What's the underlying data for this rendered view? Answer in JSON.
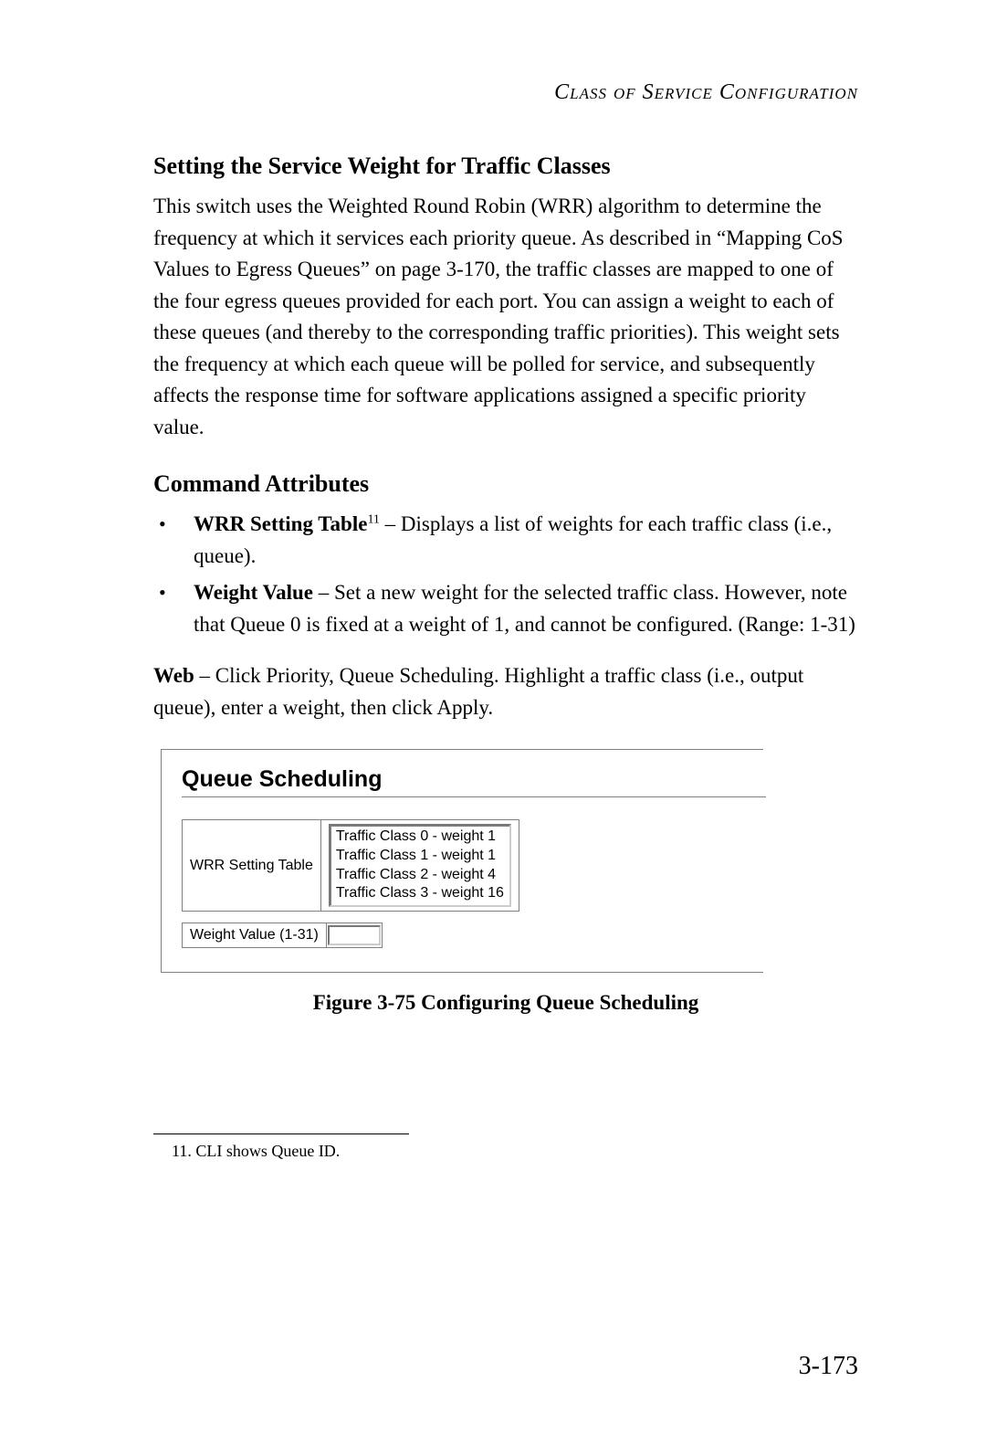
{
  "header": {
    "title": "Class of Service Configuration"
  },
  "section": {
    "title": "Setting the Service Weight for Traffic Classes",
    "para": "This switch uses the Weighted Round Robin (WRR) algorithm to determine the frequency at which it services each priority queue. As described in “Mapping CoS Values to Egress Queues” on page 3-170, the traffic classes are mapped to one of the four egress queues provided for each port. You can assign a weight to each of these queues (and thereby to the corresponding traffic priorities). This weight sets the frequency at which each queue will be polled for service, and subsequently affects the response time for software applications assigned a specific priority value."
  },
  "attributes": {
    "heading": "Command Attributes",
    "items": [
      {
        "label": "WRR Setting Table",
        "sup": "11",
        "desc": " – Displays a list of weights for each traffic class (i.e., queue)."
      },
      {
        "label": "Weight Value",
        "sup": "",
        "desc": " – Set a new weight for the selected traffic class. However, note that Queue 0 is fixed at a weight of 1, and cannot be configured. (Range: 1-31)"
      }
    ]
  },
  "webline": {
    "bold": "Web",
    "rest": " – Click Priority, Queue Scheduling. Highlight a traffic class (i.e., output queue), enter a weight, then click Apply."
  },
  "figure": {
    "title": "Queue Scheduling",
    "wrr_label": "WRR Setting Table",
    "weight_label": "Weight Value (1-31)",
    "weight_value": "",
    "options": [
      "Traffic Class 0 - weight 1",
      "Traffic Class 1 - weight 1",
      "Traffic Class 2 - weight 4",
      "Traffic Class 3 - weight 16"
    ],
    "caption": "Figure 3-75   Configuring Queue Scheduling"
  },
  "footnote": {
    "text": "11.  CLI shows Queue ID."
  },
  "page": {
    "number": "3-173"
  }
}
